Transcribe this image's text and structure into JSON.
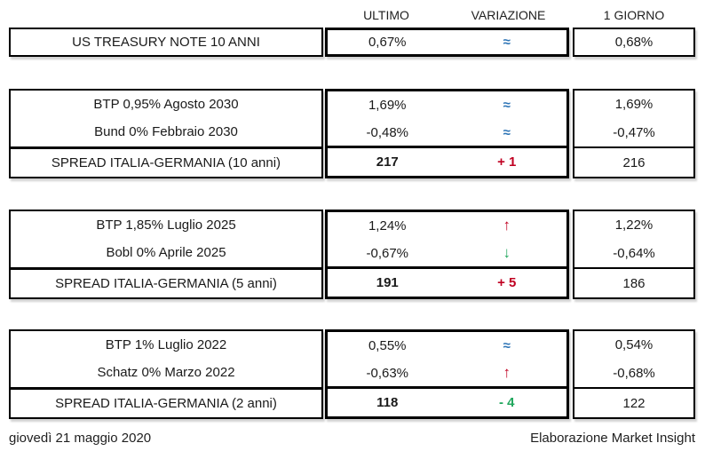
{
  "header": {
    "ultimo": "ULTIMO",
    "variazione": "VARIAZIONE",
    "giorno": "1 GIORNO"
  },
  "colors": {
    "border": "#000000",
    "text": "#1a1a1a",
    "flat_blue": "#2E75B6",
    "up_red": "#C00021",
    "down_green": "#21A75D"
  },
  "blocks": [
    {
      "rows": [
        {
          "label": "US TREASURY NOTE 10 ANNI",
          "ultimo": "0,67%",
          "variazione": "≈",
          "variazione_type": "flat",
          "giorno": "0,68%"
        }
      ]
    },
    {
      "rows": [
        {
          "label": "BTP 0,95% Agosto 2030",
          "ultimo": "1,69%",
          "variazione": "≈",
          "variazione_type": "flat",
          "giorno": "1,69%"
        },
        {
          "label": "Bund 0% Febbraio 2030",
          "ultimo": "-0,48%",
          "variazione": "≈",
          "variazione_type": "flat",
          "giorno": "-0,47%"
        }
      ],
      "spread": {
        "label": "SPREAD ITALIA-GERMANIA (10 anni)",
        "ultimo": "217",
        "variazione": "+ 1",
        "variazione_type": "up",
        "giorno": "216"
      }
    },
    {
      "rows": [
        {
          "label": "BTP 1,85% Luglio 2025",
          "ultimo": "1,24%",
          "variazione": "↑",
          "variazione_type": "up",
          "giorno": "1,22%"
        },
        {
          "label": "Bobl 0% Aprile 2025",
          "ultimo": "-0,67%",
          "variazione": "↓",
          "variazione_type": "down",
          "giorno": "-0,64%"
        }
      ],
      "spread": {
        "label": "SPREAD ITALIA-GERMANIA (5 anni)",
        "ultimo": "191",
        "variazione": "+ 5",
        "variazione_type": "up",
        "giorno": "186"
      }
    },
    {
      "rows": [
        {
          "label": "BTP 1% Luglio 2022",
          "ultimo": "0,55%",
          "variazione": "≈",
          "variazione_type": "flat",
          "giorno": "0,54%"
        },
        {
          "label": "Schatz 0% Marzo 2022",
          "ultimo": "-0,63%",
          "variazione": "↑",
          "variazione_type": "up",
          "giorno": "-0,68%"
        }
      ],
      "spread": {
        "label": "SPREAD ITALIA-GERMANIA (2 anni)",
        "ultimo": "118",
        "variazione": "- 4",
        "variazione_type": "down",
        "giorno": "122"
      }
    }
  ],
  "footer": {
    "date": "giovedì 21 maggio 2020",
    "attribution": "Elaborazione Market Insight"
  }
}
